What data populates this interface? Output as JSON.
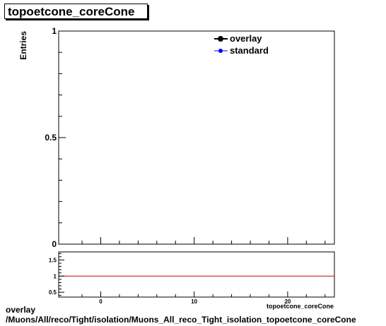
{
  "title": "topoetcone_coreCone",
  "footer": {
    "line1": "overlay",
    "line2": "/Muons/All/reco/Tight/isolation/Muons_All_reco_Tight_isolation_topoetcone_coreCone"
  },
  "colors": {
    "overlay": "#000000",
    "standard": "#0000ff",
    "ratio_line": "#cc0000"
  },
  "chart_data": [
    {
      "type": "line",
      "title": "topoetcone_coreCone",
      "ylabel": "Entries",
      "xlabel": "",
      "xlim": [
        -4.5,
        25
      ],
      "ylim": [
        0,
        1
      ],
      "ytick_labels": [
        "0",
        "0.5",
        "1"
      ],
      "yticks": [
        0,
        0.5,
        1
      ],
      "legend": {
        "placement": "top-right",
        "entries": [
          "overlay",
          "standard"
        ]
      },
      "series": [
        {
          "name": "overlay",
          "x": [],
          "y": []
        },
        {
          "name": "standard",
          "x": [],
          "y": []
        }
      ],
      "grid": false
    },
    {
      "type": "line",
      "xlabel": "topoetcone_coreCone",
      "xlim": [
        -4.5,
        25
      ],
      "ylim": [
        0.35,
        1.75
      ],
      "xticks": [
        0,
        10,
        20
      ],
      "xtick_labels": [
        "0",
        "10",
        "20"
      ],
      "yticks": [
        0.5,
        1,
        1.5
      ],
      "ytick_labels": [
        "0.5",
        "1",
        "1.5"
      ],
      "reference_line": 1,
      "series": [],
      "grid": false
    }
  ]
}
